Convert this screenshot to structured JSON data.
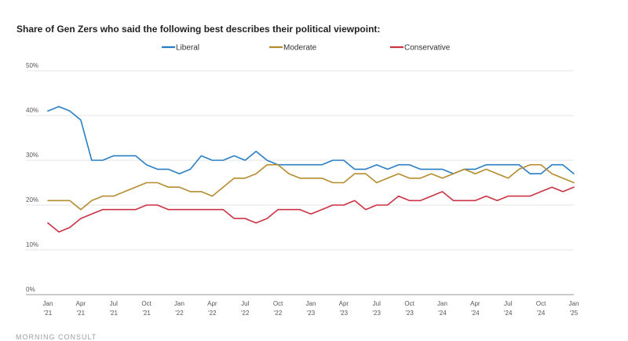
{
  "footer": {
    "logo_text": "MORNING CONSULT"
  },
  "chart_data": {
    "type": "line",
    "title": "Share of Gen Zers who said the following best describes their political viewpoint:",
    "xlabel": "",
    "ylabel": "",
    "ylim": [
      0,
      50
    ],
    "yticks": [
      "0%",
      "10%",
      "20%",
      "30%",
      "40%",
      "50%"
    ],
    "grid": true,
    "legend_position": "top",
    "x_tick_labels": [
      [
        "Jan",
        "'21"
      ],
      [
        "Apr",
        "'21"
      ],
      [
        "Jul",
        "'21"
      ],
      [
        "Oct",
        "'21"
      ],
      [
        "Jan",
        "'22"
      ],
      [
        "Apr",
        "'22"
      ],
      [
        "Jul",
        "'22"
      ],
      [
        "Oct",
        "'22"
      ],
      [
        "Jan",
        "'23"
      ],
      [
        "Apr",
        "'23"
      ],
      [
        "Jul",
        "'23"
      ],
      [
        "Oct",
        "'23"
      ],
      [
        "Jan",
        "'24"
      ],
      [
        "Apr",
        "'24"
      ],
      [
        "Jul",
        "'24"
      ],
      [
        "Oct",
        "'24"
      ],
      [
        "Jan",
        "'25"
      ]
    ],
    "x_start": "2021-01",
    "x_end": "2025-01",
    "series": [
      {
        "name": "Liberal",
        "color": "#2a7fc4",
        "values": [
          41,
          42,
          41,
          39,
          30,
          30,
          31,
          31,
          31,
          29,
          28,
          28,
          27,
          28,
          31,
          30,
          30,
          31,
          30,
          32,
          30,
          29,
          29,
          29,
          29,
          29,
          30,
          30,
          28,
          28,
          29,
          28,
          29,
          29,
          28,
          28,
          28,
          27,
          28,
          28,
          29,
          29,
          29,
          29,
          27,
          27,
          29,
          29,
          27
        ]
      },
      {
        "name": "Moderate",
        "color": "#b58d2f",
        "values": [
          21,
          21,
          21,
          19,
          21,
          22,
          22,
          23,
          24,
          25,
          25,
          24,
          24,
          23,
          23,
          22,
          24,
          26,
          26,
          27,
          29,
          29,
          27,
          26,
          26,
          26,
          25,
          25,
          27,
          27,
          25,
          26,
          27,
          26,
          26,
          27,
          26,
          27,
          28,
          27,
          28,
          27,
          26,
          28,
          29,
          29,
          27,
          26,
          25
        ]
      },
      {
        "name": "Conservative",
        "color": "#cc3344",
        "values": [
          16,
          14,
          15,
          17,
          18,
          19,
          19,
          19,
          19,
          20,
          20,
          19,
          19,
          19,
          19,
          19,
          19,
          17,
          17,
          16,
          17,
          19,
          19,
          19,
          18,
          19,
          20,
          20,
          21,
          19,
          20,
          20,
          22,
          21,
          21,
          22,
          23,
          21,
          21,
          21,
          22,
          21,
          22,
          22,
          22,
          23,
          24,
          23,
          24
        ]
      }
    ]
  }
}
